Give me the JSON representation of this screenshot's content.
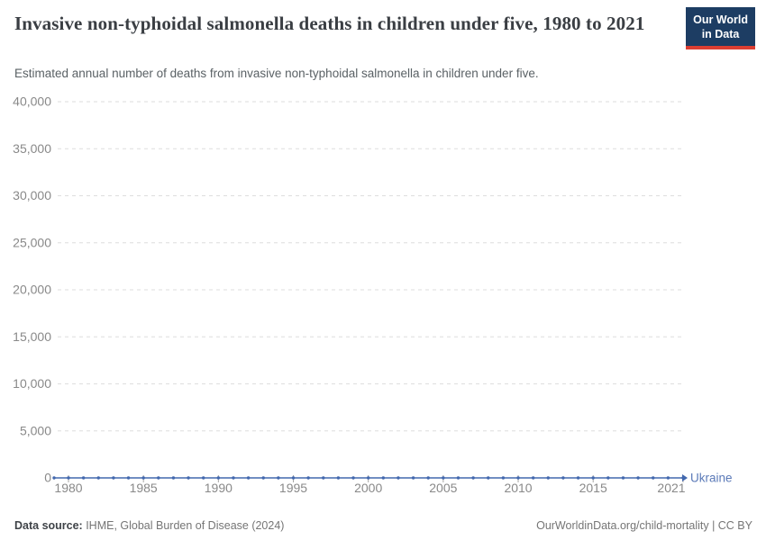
{
  "header": {
    "logo": {
      "line1": "Our World",
      "line2": "in Data",
      "bg_color": "#1d3d63",
      "stripe_color": "#dc3e32"
    }
  },
  "chart_data": {
    "type": "line",
    "title": "Invasive non-typhoidal salmonella deaths in children under five, 1980 to 2021",
    "subtitle": "Estimated annual number of deaths from invasive non-typhoidal salmonella in children under five.",
    "xlabel": "",
    "ylabel": "",
    "x": [
      1980,
      1981,
      1982,
      1983,
      1984,
      1985,
      1986,
      1987,
      1988,
      1989,
      1990,
      1991,
      1992,
      1993,
      1994,
      1995,
      1996,
      1997,
      1998,
      1999,
      2000,
      2001,
      2002,
      2003,
      2004,
      2005,
      2006,
      2007,
      2008,
      2009,
      2010,
      2011,
      2012,
      2013,
      2014,
      2015,
      2016,
      2017,
      2018,
      2019,
      2020,
      2021
    ],
    "series": [
      {
        "name": "Ukraine",
        "color": "#4268ae",
        "label_color": "#5b7ab8",
        "values": [
          0,
          0,
          0,
          0,
          0,
          0,
          0,
          0,
          0,
          0,
          0,
          0,
          0,
          0,
          0,
          0,
          0,
          0,
          0,
          0,
          0,
          0,
          0,
          0,
          0,
          0,
          0,
          0,
          0,
          0,
          0,
          0,
          0,
          0,
          0,
          0,
          0,
          0,
          0,
          0,
          0,
          0
        ]
      }
    ],
    "x_ticks": [
      1980,
      1985,
      1990,
      1995,
      2000,
      2005,
      2010,
      2015,
      2021
    ],
    "y_ticks": [
      0,
      5000,
      10000,
      15000,
      20000,
      25000,
      30000,
      35000,
      40000
    ],
    "ylim": [
      0,
      40000
    ],
    "xlim": [
      1980,
      2021
    ],
    "grid": {
      "horizontal": true,
      "style": "dashed",
      "color": "#dedede"
    },
    "axis_label_color": "#898989",
    "tick_mark_color": "#a5a5a5",
    "legend_position": "end-of-line",
    "markers": true
  },
  "footer": {
    "source_label": "Data source:",
    "source_text": " IHME, Global Burden of Disease (2024)",
    "credit": "OurWorldinData.org/child-mortality | CC BY"
  }
}
